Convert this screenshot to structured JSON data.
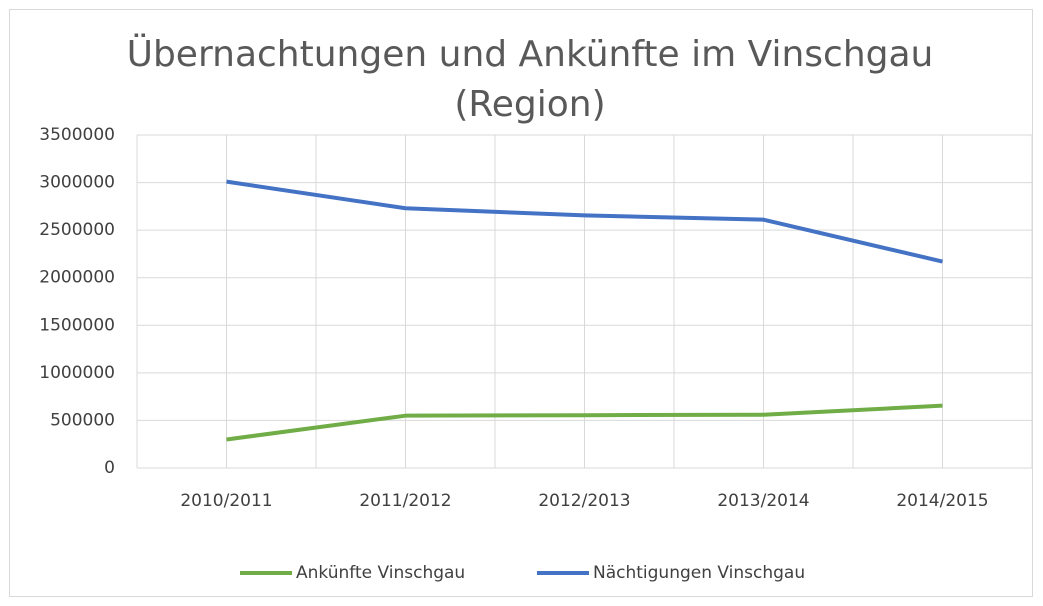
{
  "chart_data": {
    "type": "line",
    "title": "Übernachtungen und Ankünfte im Vinschgau (Region)",
    "categories": [
      "2010/2011",
      "2011/2012",
      "2012/2013",
      "2013/2014",
      "2014/2015"
    ],
    "series": [
      {
        "name": "Ankünfte Vinschgau",
        "color": "#70ad47",
        "values": [
          300000,
          550000,
          555000,
          560000,
          655000
        ]
      },
      {
        "name": "Nächtigungen Vinschgau",
        "color": "#4472c4",
        "values": [
          3010000,
          2730000,
          2655000,
          2610000,
          2170000
        ]
      }
    ],
    "ylim": [
      0,
      3500000
    ],
    "yticks": [
      0,
      500000,
      1000000,
      1500000,
      2000000,
      2500000,
      3000000,
      3500000
    ],
    "grid": true,
    "legend": "bottom"
  }
}
